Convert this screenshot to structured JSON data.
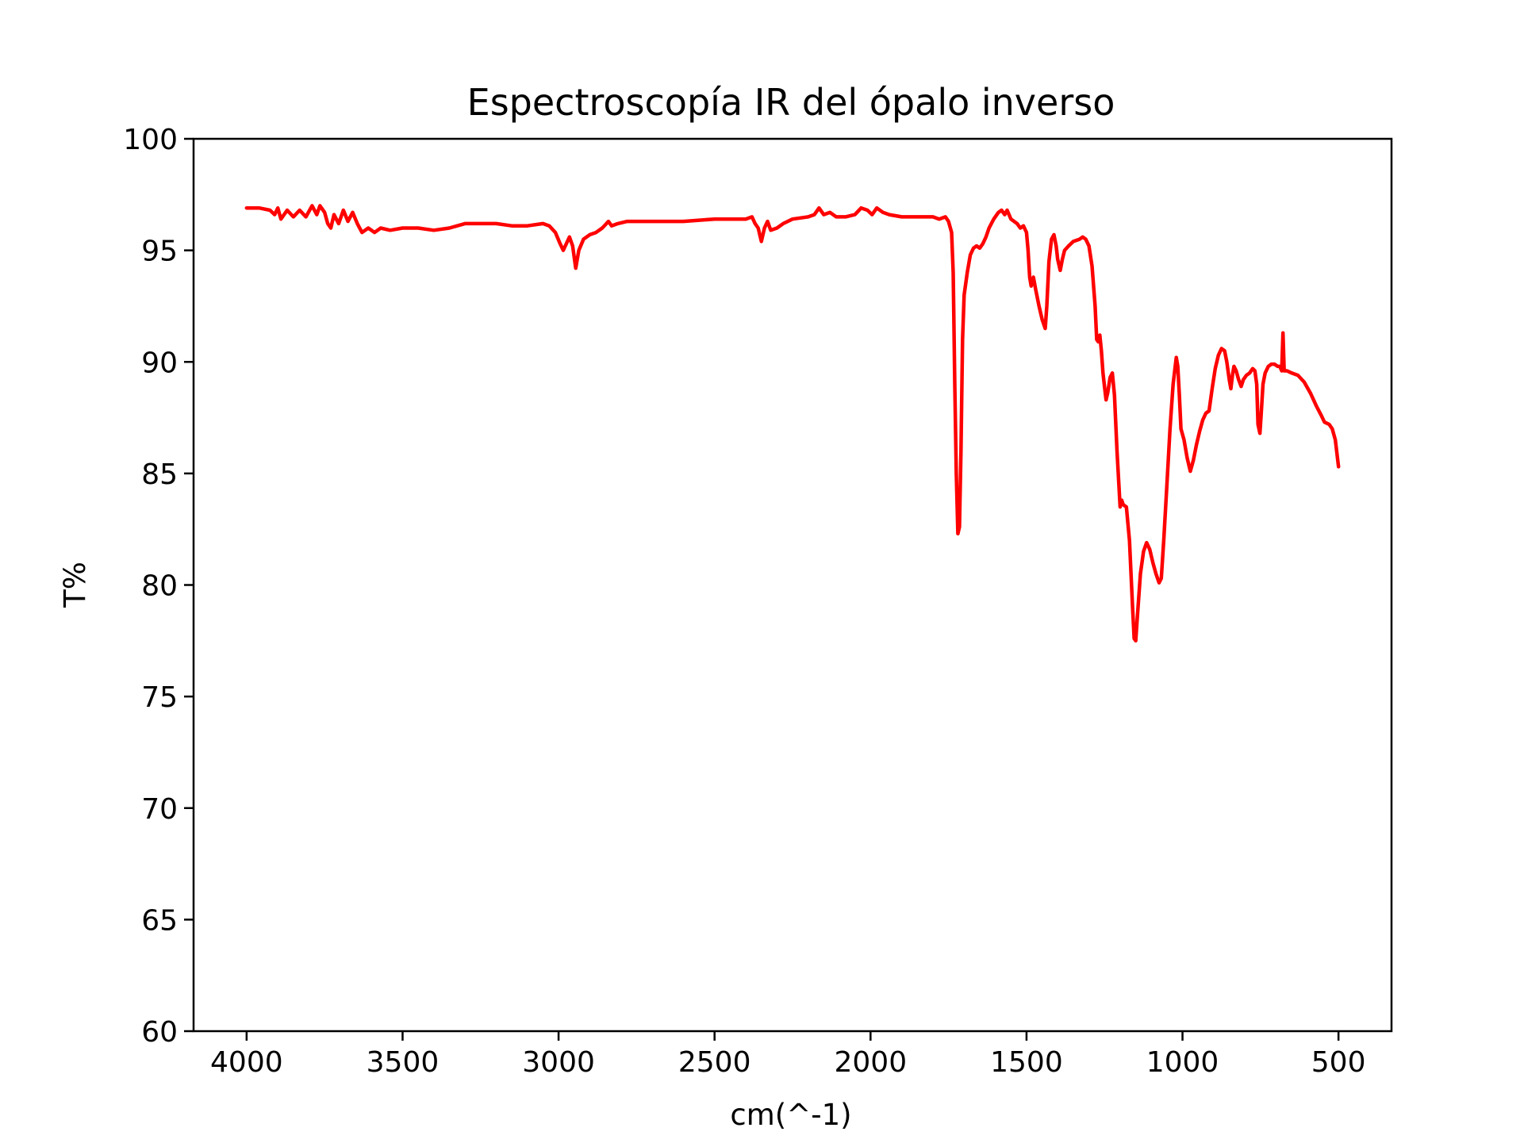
{
  "chart_data": {
    "type": "line",
    "title": "Espectroscopía IR del ópalo inverso",
    "xlabel": "cm(^-1)",
    "ylabel": "T%",
    "xlim": [
      4170,
      330
    ],
    "ylim": [
      60,
      100
    ],
    "x_ticks": [
      4000,
      3500,
      3000,
      2500,
      2000,
      1500,
      1000,
      500
    ],
    "y_ticks": [
      60,
      65,
      70,
      75,
      80,
      85,
      90,
      95,
      100
    ],
    "grid": false,
    "legend": "none",
    "series": [
      {
        "color": "#ff0000",
        "points": [
          [
            4000,
            96.9
          ],
          [
            3960,
            96.9
          ],
          [
            3925,
            96.8
          ],
          [
            3910,
            96.6
          ],
          [
            3900,
            96.9
          ],
          [
            3890,
            96.4
          ],
          [
            3870,
            96.8
          ],
          [
            3850,
            96.5
          ],
          [
            3830,
            96.8
          ],
          [
            3810,
            96.5
          ],
          [
            3790,
            97.0
          ],
          [
            3775,
            96.6
          ],
          [
            3765,
            97.0
          ],
          [
            3750,
            96.7
          ],
          [
            3740,
            96.2
          ],
          [
            3730,
            96.0
          ],
          [
            3720,
            96.6
          ],
          [
            3705,
            96.2
          ],
          [
            3690,
            96.8
          ],
          [
            3675,
            96.3
          ],
          [
            3660,
            96.7
          ],
          [
            3645,
            96.2
          ],
          [
            3630,
            95.8
          ],
          [
            3610,
            96.0
          ],
          [
            3590,
            95.8
          ],
          [
            3570,
            96.0
          ],
          [
            3540,
            95.9
          ],
          [
            3500,
            96.0
          ],
          [
            3450,
            96.0
          ],
          [
            3400,
            95.9
          ],
          [
            3350,
            96.0
          ],
          [
            3300,
            96.2
          ],
          [
            3250,
            96.2
          ],
          [
            3200,
            96.2
          ],
          [
            3150,
            96.1
          ],
          [
            3100,
            96.1
          ],
          [
            3050,
            96.2
          ],
          [
            3030,
            96.1
          ],
          [
            3010,
            95.8
          ],
          [
            2995,
            95.3
          ],
          [
            2985,
            95.0
          ],
          [
            2975,
            95.3
          ],
          [
            2965,
            95.6
          ],
          [
            2955,
            95.2
          ],
          [
            2945,
            94.2
          ],
          [
            2935,
            95.0
          ],
          [
            2920,
            95.5
          ],
          [
            2900,
            95.7
          ],
          [
            2880,
            95.8
          ],
          [
            2860,
            96.0
          ],
          [
            2840,
            96.3
          ],
          [
            2830,
            96.1
          ],
          [
            2810,
            96.2
          ],
          [
            2780,
            96.3
          ],
          [
            2700,
            96.3
          ],
          [
            2650,
            96.3
          ],
          [
            2600,
            96.3
          ],
          [
            2500,
            96.4
          ],
          [
            2400,
            96.4
          ],
          [
            2380,
            96.5
          ],
          [
            2370,
            96.2
          ],
          [
            2360,
            96.0
          ],
          [
            2350,
            95.4
          ],
          [
            2340,
            96.0
          ],
          [
            2330,
            96.3
          ],
          [
            2320,
            95.9
          ],
          [
            2300,
            96.0
          ],
          [
            2280,
            96.2
          ],
          [
            2250,
            96.4
          ],
          [
            2200,
            96.5
          ],
          [
            2180,
            96.6
          ],
          [
            2165,
            96.9
          ],
          [
            2150,
            96.6
          ],
          [
            2130,
            96.7
          ],
          [
            2110,
            96.5
          ],
          [
            2080,
            96.5
          ],
          [
            2050,
            96.6
          ],
          [
            2030,
            96.9
          ],
          [
            2010,
            96.8
          ],
          [
            1995,
            96.6
          ],
          [
            1980,
            96.9
          ],
          [
            1960,
            96.7
          ],
          [
            1940,
            96.6
          ],
          [
            1900,
            96.5
          ],
          [
            1850,
            96.5
          ],
          [
            1800,
            96.5
          ],
          [
            1780,
            96.4
          ],
          [
            1760,
            96.5
          ],
          [
            1750,
            96.3
          ],
          [
            1740,
            95.8
          ],
          [
            1735,
            94.0
          ],
          [
            1730,
            89.0
          ],
          [
            1725,
            85.0
          ],
          [
            1720,
            82.3
          ],
          [
            1715,
            82.6
          ],
          [
            1710,
            86.0
          ],
          [
            1705,
            91.0
          ],
          [
            1700,
            93.0
          ],
          [
            1690,
            94.0
          ],
          [
            1680,
            94.8
          ],
          [
            1670,
            95.1
          ],
          [
            1660,
            95.2
          ],
          [
            1650,
            95.1
          ],
          [
            1640,
            95.3
          ],
          [
            1630,
            95.6
          ],
          [
            1620,
            96.0
          ],
          [
            1605,
            96.4
          ],
          [
            1590,
            96.7
          ],
          [
            1580,
            96.8
          ],
          [
            1570,
            96.6
          ],
          [
            1562,
            96.8
          ],
          [
            1550,
            96.4
          ],
          [
            1540,
            96.3
          ],
          [
            1530,
            96.2
          ],
          [
            1520,
            96.0
          ],
          [
            1510,
            96.1
          ],
          [
            1500,
            95.8
          ],
          [
            1495,
            95.0
          ],
          [
            1490,
            93.8
          ],
          [
            1485,
            93.4
          ],
          [
            1478,
            93.8
          ],
          [
            1470,
            93.2
          ],
          [
            1460,
            92.5
          ],
          [
            1450,
            91.9
          ],
          [
            1440,
            91.5
          ],
          [
            1435,
            92.5
          ],
          [
            1428,
            94.5
          ],
          [
            1420,
            95.5
          ],
          [
            1412,
            95.7
          ],
          [
            1405,
            95.2
          ],
          [
            1400,
            94.6
          ],
          [
            1392,
            94.1
          ],
          [
            1385,
            94.6
          ],
          [
            1378,
            95.0
          ],
          [
            1365,
            95.2
          ],
          [
            1350,
            95.4
          ],
          [
            1330,
            95.5
          ],
          [
            1320,
            95.6
          ],
          [
            1310,
            95.5
          ],
          [
            1300,
            95.2
          ],
          [
            1290,
            94.3
          ],
          [
            1280,
            92.5
          ],
          [
            1275,
            91.0
          ],
          [
            1270,
            90.9
          ],
          [
            1265,
            91.2
          ],
          [
            1260,
            90.5
          ],
          [
            1255,
            89.5
          ],
          [
            1250,
            88.9
          ],
          [
            1245,
            88.3
          ],
          [
            1240,
            88.6
          ],
          [
            1232,
            89.3
          ],
          [
            1225,
            89.5
          ],
          [
            1218,
            88.5
          ],
          [
            1210,
            86.0
          ],
          [
            1200,
            83.5
          ],
          [
            1195,
            83.8
          ],
          [
            1190,
            83.6
          ],
          [
            1180,
            83.5
          ],
          [
            1170,
            82.0
          ],
          [
            1160,
            79.0
          ],
          [
            1155,
            77.6
          ],
          [
            1150,
            77.5
          ],
          [
            1145,
            78.5
          ],
          [
            1135,
            80.5
          ],
          [
            1125,
            81.5
          ],
          [
            1115,
            81.9
          ],
          [
            1105,
            81.6
          ],
          [
            1095,
            81.0
          ],
          [
            1085,
            80.5
          ],
          [
            1075,
            80.1
          ],
          [
            1068,
            80.3
          ],
          [
            1060,
            82.0
          ],
          [
            1050,
            84.5
          ],
          [
            1040,
            87.0
          ],
          [
            1030,
            89.0
          ],
          [
            1020,
            90.2
          ],
          [
            1015,
            89.8
          ],
          [
            1010,
            88.5
          ],
          [
            1005,
            87.0
          ],
          [
            995,
            86.5
          ],
          [
            985,
            85.7
          ],
          [
            975,
            85.1
          ],
          [
            965,
            85.6
          ],
          [
            955,
            86.3
          ],
          [
            945,
            86.9
          ],
          [
            935,
            87.4
          ],
          [
            925,
            87.7
          ],
          [
            915,
            87.8
          ],
          [
            905,
            88.8
          ],
          [
            895,
            89.7
          ],
          [
            885,
            90.3
          ],
          [
            875,
            90.6
          ],
          [
            865,
            90.5
          ],
          [
            858,
            90.0
          ],
          [
            850,
            89.2
          ],
          [
            845,
            88.8
          ],
          [
            840,
            89.4
          ],
          [
            835,
            89.8
          ],
          [
            828,
            89.6
          ],
          [
            820,
            89.2
          ],
          [
            812,
            88.9
          ],
          [
            805,
            89.2
          ],
          [
            795,
            89.4
          ],
          [
            785,
            89.5
          ],
          [
            775,
            89.7
          ],
          [
            768,
            89.6
          ],
          [
            762,
            89.0
          ],
          [
            758,
            87.2
          ],
          [
            752,
            86.8
          ],
          [
            748,
            87.6
          ],
          [
            742,
            89.0
          ],
          [
            735,
            89.5
          ],
          [
            725,
            89.8
          ],
          [
            715,
            89.9
          ],
          [
            705,
            89.9
          ],
          [
            695,
            89.8
          ],
          [
            688,
            89.8
          ],
          [
            682,
            89.6
          ],
          [
            678,
            91.3
          ],
          [
            674,
            89.6
          ],
          [
            665,
            89.6
          ],
          [
            650,
            89.5
          ],
          [
            630,
            89.4
          ],
          [
            610,
            89.1
          ],
          [
            590,
            88.6
          ],
          [
            570,
            88.0
          ],
          [
            555,
            87.6
          ],
          [
            545,
            87.3
          ],
          [
            530,
            87.2
          ],
          [
            520,
            87.0
          ],
          [
            510,
            86.5
          ],
          [
            505,
            85.9
          ],
          [
            500,
            85.3
          ]
        ]
      }
    ]
  }
}
